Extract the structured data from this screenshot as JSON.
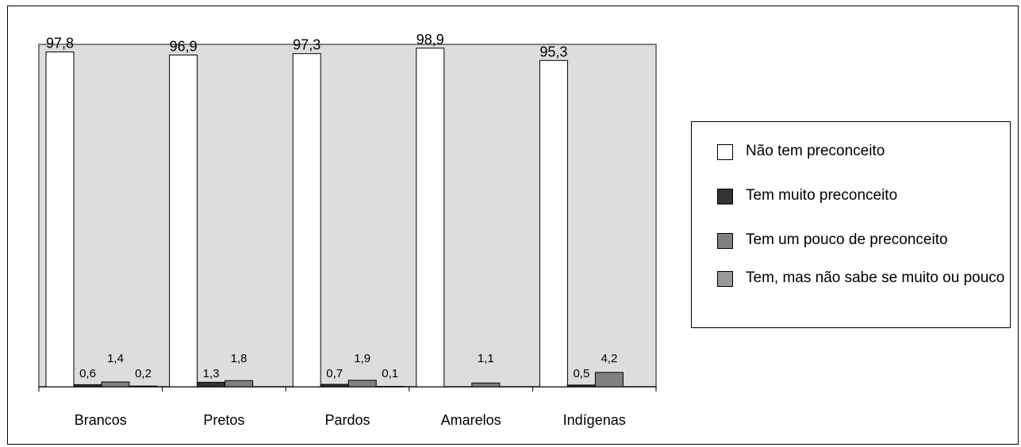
{
  "chart_data": {
    "type": "bar",
    "categories": [
      "Brancos",
      "Pretos",
      "Pardos",
      "Amarelos",
      "Indígenas"
    ],
    "ylim": [
      0,
      100
    ],
    "grid": false,
    "legend_position": "right",
    "series": [
      {
        "name": "Não tem preconceito",
        "color": "#ffffff",
        "values": [
          97.8,
          96.9,
          97.3,
          98.9,
          95.3
        ],
        "labels": [
          "97,8",
          "96,9",
          "97,3",
          "98,9",
          "95,3"
        ]
      },
      {
        "name": "Tem muito preconceito",
        "color": "#333333",
        "values": [
          0.6,
          1.3,
          0.7,
          0,
          0.5
        ],
        "labels": [
          "0,6",
          "1,3",
          "0,7",
          "",
          "0,5"
        ]
      },
      {
        "name": "Tem um pouco de preconceito",
        "color": "#808080",
        "values": [
          1.4,
          1.8,
          1.9,
          1.1,
          4.2
        ],
        "labels": [
          "1,4",
          "1,8",
          "1,9",
          "1,1",
          "4,2"
        ]
      },
      {
        "name": "Tem, mas não sabe se muito ou pouco",
        "color": "#999999",
        "values": [
          0.2,
          0,
          0.1,
          0,
          0
        ],
        "labels": [
          "0,2",
          "",
          "0,1",
          "",
          ""
        ]
      }
    ],
    "plot_background": "#dddddd"
  }
}
